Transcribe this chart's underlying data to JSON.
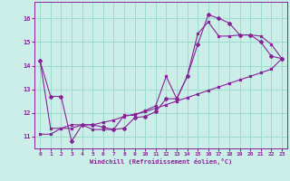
{
  "xlabel": "Windchill (Refroidissement éolien,°C)",
  "background_color": "#cceee8",
  "grid_color": "#99ddcc",
  "line_color": "#882299",
  "xlim": [
    -0.5,
    23.5
  ],
  "ylim": [
    10.5,
    16.7
  ],
  "yticks": [
    11,
    12,
    13,
    14,
    15,
    16
  ],
  "xticks": [
    0,
    1,
    2,
    3,
    4,
    5,
    6,
    7,
    8,
    9,
    10,
    11,
    12,
    13,
    14,
    15,
    16,
    17,
    18,
    19,
    20,
    21,
    22,
    23
  ],
  "series1_x": [
    0,
    1,
    2,
    3,
    4,
    5,
    6,
    7,
    8,
    9,
    10,
    11,
    12,
    13,
    14,
    15,
    16,
    17,
    18,
    19,
    20,
    21,
    22,
    23
  ],
  "series1_y": [
    14.2,
    12.7,
    12.7,
    10.8,
    11.5,
    11.5,
    11.4,
    11.3,
    11.35,
    11.8,
    11.85,
    12.05,
    12.6,
    12.6,
    13.55,
    14.9,
    16.15,
    16.0,
    15.8,
    15.3,
    15.3,
    15.0,
    14.4,
    14.3
  ],
  "series2_x": [
    0,
    1,
    2,
    3,
    4,
    5,
    6,
    7,
    8,
    9,
    10,
    11,
    12,
    13,
    14,
    15,
    16,
    17,
    18,
    19,
    20,
    21,
    22,
    23
  ],
  "series2_y": [
    14.2,
    11.35,
    11.35,
    11.5,
    11.5,
    11.3,
    11.3,
    11.3,
    11.9,
    11.9,
    12.1,
    12.3,
    13.55,
    12.6,
    13.55,
    15.35,
    15.85,
    15.25,
    15.25,
    15.3,
    15.3,
    15.25,
    14.9,
    14.3
  ],
  "series3_x": [
    0,
    1,
    2,
    3,
    4,
    5,
    6,
    7,
    8,
    9,
    10,
    11,
    12,
    13,
    14,
    15,
    16,
    17,
    18,
    19,
    20,
    21,
    22,
    23
  ],
  "series3_y": [
    11.1,
    11.1,
    11.35,
    11.35,
    11.5,
    11.5,
    11.6,
    11.7,
    11.85,
    11.95,
    12.05,
    12.2,
    12.35,
    12.5,
    12.65,
    12.8,
    12.95,
    13.1,
    13.25,
    13.4,
    13.55,
    13.7,
    13.85,
    14.3
  ]
}
